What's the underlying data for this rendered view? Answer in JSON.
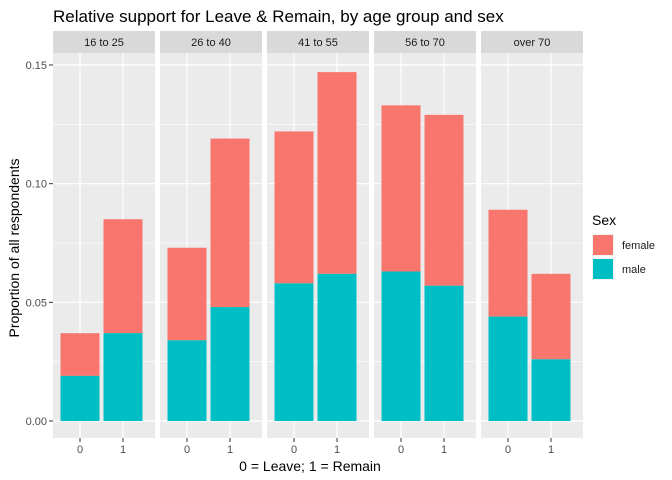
{
  "chart_data": {
    "type": "bar",
    "stacked": true,
    "faceted": true,
    "title": "Relative support for Leave & Remain, by age group and sex",
    "xlabel": "0 = Leave; 1 = Remain",
    "ylabel": "Proportion of all respondents",
    "ylim": [
      0,
      0.15
    ],
    "yticks": [
      0.0,
      0.05,
      0.1,
      0.15
    ],
    "ytick_labels": [
      "0.00",
      "0.05",
      "0.10",
      "0.15"
    ],
    "categories": [
      "0",
      "1"
    ],
    "grid": true,
    "legend": {
      "title": "Sex",
      "position": "right",
      "entries": [
        "female",
        "male"
      ]
    },
    "colors": {
      "female": "#F8766D",
      "male": "#00BFC4"
    },
    "facets": [
      {
        "label": "16 to 25",
        "male": [
          0.019,
          0.037
        ],
        "total": [
          0.037,
          0.085
        ]
      },
      {
        "label": "26 to 40",
        "male": [
          0.034,
          0.048
        ],
        "total": [
          0.073,
          0.119
        ]
      },
      {
        "label": "41 to 55",
        "male": [
          0.058,
          0.062
        ],
        "total": [
          0.122,
          0.147
        ]
      },
      {
        "label": "56 to 70",
        "male": [
          0.063,
          0.057
        ],
        "total": [
          0.133,
          0.129
        ]
      },
      {
        "label": "over 70",
        "male": [
          0.044,
          0.026
        ],
        "total": [
          0.089,
          0.062
        ]
      }
    ]
  }
}
